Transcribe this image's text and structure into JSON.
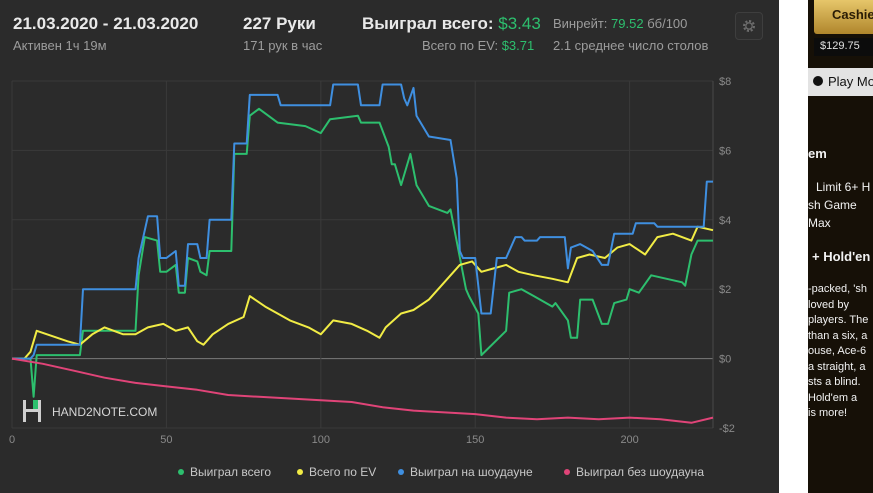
{
  "header": {
    "date_range": "21.03.2020 - 21.03.2020",
    "active": "Активен 1ч 19м",
    "hands": "227 Руки",
    "hands_per_hour": "171 рук в час",
    "won_total_label": "Выиграл всего:",
    "won_total_value": "$3.43",
    "ev_total_label": "Всего по EV:",
    "ev_total_value": "$3.71",
    "winrate_label": "Винрейт:",
    "winrate_value": "79.52",
    "winrate_unit": "бб/100",
    "avg_tables": "2.1 среднее число столов"
  },
  "watermark": {
    "text": "HAND2NOTE.COM"
  },
  "chart_data": {
    "type": "line",
    "xlim": [
      0,
      227
    ],
    "ylim": [
      -2,
      8
    ],
    "x_ticks": [
      0,
      50,
      100,
      150,
      200
    ],
    "y_ticks": [
      {
        "value": 8,
        "label": "$8"
      },
      {
        "value": 6,
        "label": "$6"
      },
      {
        "value": 4,
        "label": "$4"
      },
      {
        "value": 2,
        "label": "$2"
      },
      {
        "value": 0,
        "label": "$0"
      },
      {
        "value": -2,
        "label": "-$2"
      }
    ],
    "grid": true,
    "legend_position": "bottom",
    "series": [
      {
        "name": "Выиграл всего",
        "color": "#2dbf6e",
        "points": [
          [
            0,
            0
          ],
          [
            6,
            0
          ],
          [
            7,
            -1.1
          ],
          [
            8,
            0.1
          ],
          [
            22,
            0.1
          ],
          [
            23,
            0.8
          ],
          [
            40,
            0.8
          ],
          [
            41,
            2.4
          ],
          [
            43,
            3.5
          ],
          [
            47,
            3.4
          ],
          [
            48,
            2.5
          ],
          [
            50,
            2.5
          ],
          [
            53,
            2.7
          ],
          [
            54,
            1.9
          ],
          [
            56,
            1.9
          ],
          [
            57,
            2.9
          ],
          [
            60,
            2.8
          ],
          [
            61,
            2.5
          ],
          [
            63,
            2.4
          ],
          [
            64,
            3.1
          ],
          [
            71,
            3.1
          ],
          [
            72,
            5.9
          ],
          [
            76,
            5.9
          ],
          [
            77,
            7.0
          ],
          [
            80,
            7.2
          ],
          [
            86,
            6.8
          ],
          [
            95,
            6.7
          ],
          [
            100,
            6.5
          ],
          [
            103,
            6.9
          ],
          [
            112,
            7.0
          ],
          [
            113,
            6.8
          ],
          [
            119,
            6.8
          ],
          [
            122,
            6.1
          ],
          [
            123,
            5.6
          ],
          [
            124,
            5.6
          ],
          [
            126,
            5.0
          ],
          [
            129,
            5.9
          ],
          [
            131,
            5.0
          ],
          [
            135,
            4.4
          ],
          [
            141,
            4.2
          ],
          [
            142,
            4.3
          ],
          [
            147,
            2.0
          ],
          [
            148,
            1.8
          ],
          [
            151,
            1.3
          ],
          [
            152,
            0.1
          ],
          [
            160,
            0.8
          ],
          [
            161,
            1.9
          ],
          [
            165,
            2.0
          ],
          [
            169,
            1.8
          ],
          [
            175,
            1.5
          ],
          [
            176,
            1.6
          ],
          [
            180,
            1.1
          ],
          [
            181,
            0.6
          ],
          [
            183,
            0.6
          ],
          [
            184,
            1.7
          ],
          [
            188,
            1.7
          ],
          [
            191,
            1.0
          ],
          [
            193,
            1.0
          ],
          [
            195,
            1.6
          ],
          [
            199,
            1.7
          ],
          [
            200,
            2.0
          ],
          [
            203,
            1.9
          ],
          [
            207,
            2.4
          ],
          [
            212,
            2.3
          ],
          [
            217,
            2.2
          ],
          [
            218,
            2.1
          ],
          [
            220,
            3.0
          ],
          [
            222,
            3.4
          ],
          [
            227,
            3.4
          ]
        ]
      },
      {
        "name": "Всего по EV",
        "color": "#f1ec45",
        "points": [
          [
            0,
            0
          ],
          [
            4,
            0
          ],
          [
            6,
            0.2
          ],
          [
            8,
            0.8
          ],
          [
            18,
            0.5
          ],
          [
            22,
            0.4
          ],
          [
            26,
            0.7
          ],
          [
            30,
            0.9
          ],
          [
            36,
            0.7
          ],
          [
            40,
            0.7
          ],
          [
            44,
            0.9
          ],
          [
            49,
            1.0
          ],
          [
            53,
            0.8
          ],
          [
            57,
            0.9
          ],
          [
            60,
            0.5
          ],
          [
            62,
            0.4
          ],
          [
            65,
            0.7
          ],
          [
            70,
            1.0
          ],
          [
            75,
            1.2
          ],
          [
            77,
            1.8
          ],
          [
            82,
            1.5
          ],
          [
            86,
            1.3
          ],
          [
            90,
            1.1
          ],
          [
            96,
            0.9
          ],
          [
            100,
            0.7
          ],
          [
            104,
            1.1
          ],
          [
            110,
            1.0
          ],
          [
            115,
            0.8
          ],
          [
            119,
            0.6
          ],
          [
            121,
            0.9
          ],
          [
            126,
            1.3
          ],
          [
            130,
            1.4
          ],
          [
            135,
            1.7
          ],
          [
            140,
            2.2
          ],
          [
            145,
            2.7
          ],
          [
            149,
            2.8
          ],
          [
            152,
            2.5
          ],
          [
            156,
            2.6
          ],
          [
            160,
            2.7
          ],
          [
            164,
            2.5
          ],
          [
            169,
            2.4
          ],
          [
            175,
            2.3
          ],
          [
            180,
            2.2
          ],
          [
            183,
            2.9
          ],
          [
            187,
            3.0
          ],
          [
            192,
            2.9
          ],
          [
            196,
            3.2
          ],
          [
            200,
            3.3
          ],
          [
            205,
            3.0
          ],
          [
            209,
            3.5
          ],
          [
            214,
            3.6
          ],
          [
            220,
            3.4
          ],
          [
            222,
            3.8
          ],
          [
            227,
            3.7
          ]
        ]
      },
      {
        "name": "Выиграл на шоудауне",
        "color": "#3f8fe0",
        "points": [
          [
            0,
            0
          ],
          [
            6,
            0
          ],
          [
            7,
            0.1
          ],
          [
            8,
            0.4
          ],
          [
            22,
            0.4
          ],
          [
            23,
            2.0
          ],
          [
            40,
            2.0
          ],
          [
            41,
            2.9
          ],
          [
            44,
            4.1
          ],
          [
            47,
            4.1
          ],
          [
            48,
            2.9
          ],
          [
            50,
            2.9
          ],
          [
            53,
            3.1
          ],
          [
            54,
            2.1
          ],
          [
            56,
            2.1
          ],
          [
            57,
            3.3
          ],
          [
            60,
            3.3
          ],
          [
            61,
            2.9
          ],
          [
            63,
            2.9
          ],
          [
            64,
            4.0
          ],
          [
            71,
            4.0
          ],
          [
            72,
            6.2
          ],
          [
            76,
            6.2
          ],
          [
            77,
            7.6
          ],
          [
            86,
            7.6
          ],
          [
            87,
            7.3
          ],
          [
            103,
            7.3
          ],
          [
            104,
            7.9
          ],
          [
            112,
            7.9
          ],
          [
            113,
            7.3
          ],
          [
            119,
            7.3
          ],
          [
            120,
            7.9
          ],
          [
            126,
            7.9
          ],
          [
            127,
            7.5
          ],
          [
            128,
            7.3
          ],
          [
            130,
            7.8
          ],
          [
            131,
            7.0
          ],
          [
            135,
            6.4
          ],
          [
            142,
            6.3
          ],
          [
            144,
            5.2
          ],
          [
            145,
            3.1
          ],
          [
            146,
            2.9
          ],
          [
            150,
            2.9
          ],
          [
            151,
            2.1
          ],
          [
            152,
            1.3
          ],
          [
            155,
            1.3
          ],
          [
            157,
            2.9
          ],
          [
            160,
            2.9
          ],
          [
            163,
            3.5
          ],
          [
            165,
            3.5
          ],
          [
            166,
            3.4
          ],
          [
            170,
            3.4
          ],
          [
            171,
            3.5
          ],
          [
            179,
            3.5
          ],
          [
            180,
            2.6
          ],
          [
            181,
            3.2
          ],
          [
            184,
            3.3
          ],
          [
            188,
            3.1
          ],
          [
            191,
            2.7
          ],
          [
            193,
            2.7
          ],
          [
            195,
            3.6
          ],
          [
            201,
            3.6
          ],
          [
            202,
            3.9
          ],
          [
            208,
            3.9
          ],
          [
            209,
            3.8
          ],
          [
            224,
            3.8
          ],
          [
            225,
            5.1
          ],
          [
            227,
            5.1
          ]
        ]
      },
      {
        "name": "Выиграл без шоудауна",
        "color": "#e04478",
        "points": [
          [
            0,
            0
          ],
          [
            10,
            -0.15
          ],
          [
            20,
            -0.35
          ],
          [
            30,
            -0.55
          ],
          [
            40,
            -0.7
          ],
          [
            50,
            -0.8
          ],
          [
            60,
            -0.9
          ],
          [
            70,
            -1.05
          ],
          [
            80,
            -1.1
          ],
          [
            90,
            -1.15
          ],
          [
            100,
            -1.2
          ],
          [
            110,
            -1.25
          ],
          [
            120,
            -1.4
          ],
          [
            130,
            -1.5
          ],
          [
            140,
            -1.55
          ],
          [
            150,
            -1.6
          ],
          [
            160,
            -1.7
          ],
          [
            170,
            -1.75
          ],
          [
            180,
            -1.7
          ],
          [
            190,
            -1.75
          ],
          [
            200,
            -1.7
          ],
          [
            210,
            -1.75
          ],
          [
            220,
            -1.85
          ],
          [
            227,
            -1.7
          ]
        ]
      }
    ]
  },
  "side": {
    "cashier": "Cashier",
    "balance": "$129.75",
    "play_money": "Play Mo",
    "heading1": "em",
    "line1": "Limit 6+ H",
    "line2": "sh Game",
    "line3": "Max",
    "heading2": "+ Hold'en",
    "desc": [
      "-packed, 'sh",
      "loved by",
      "players. The",
      "than a six, a",
      "ouse, Ace-6",
      "a straight, a",
      "sts a blind.",
      "Hold'em a",
      "is more!"
    ]
  }
}
